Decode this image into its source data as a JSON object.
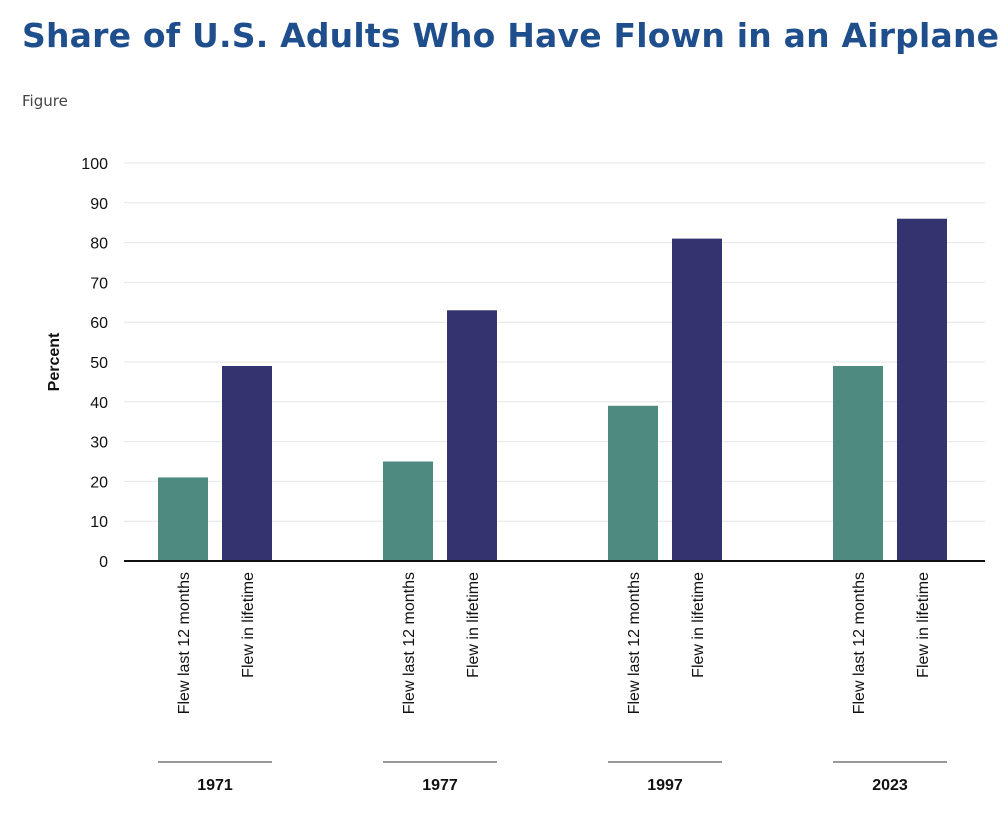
{
  "page": {
    "title": "Share of U.S. Adults Who Have Flown in an Airplane",
    "subtitle": "Figure"
  },
  "colors": {
    "title": "#1f4e8c",
    "flew_last_12_months": "#4e8a7f",
    "flew_in_lifetime": "#32336f",
    "grid": "#e6e6e6",
    "axis": "#111111"
  },
  "chart_data": {
    "type": "bar",
    "title": "Share of U.S. Adults Who Have Flown in an Airplane",
    "xlabel": "",
    "ylabel": "Percent",
    "ylim": [
      0,
      100
    ],
    "yticks": [
      0,
      10,
      20,
      30,
      40,
      50,
      60,
      70,
      80,
      90,
      100
    ],
    "grid": true,
    "categories": [
      "1971",
      "1977",
      "1997",
      "2023"
    ],
    "series": [
      {
        "name": "Flew last 12 months",
        "values": [
          21,
          25,
          39,
          49
        ]
      },
      {
        "name": "Flew in lifetime",
        "values": [
          49,
          63,
          81,
          86
        ]
      }
    ]
  }
}
